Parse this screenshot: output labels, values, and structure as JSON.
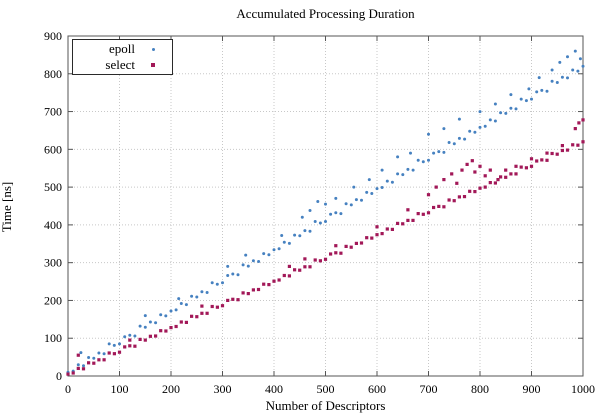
{
  "window": {
    "background": "#ffffff",
    "frame_color": "#555555",
    "grid_color": "#c8c8c8"
  },
  "chart_data": {
    "type": "scatter",
    "title": "Accumulated Processing Duration",
    "xlabel": "Number of Descriptors",
    "ylabel": "Time [ns]",
    "xlim": [
      0,
      1000
    ],
    "ylim": [
      0,
      900
    ],
    "x_ticks": [
      0,
      100,
      200,
      300,
      400,
      500,
      600,
      700,
      800,
      900,
      1000
    ],
    "y_ticks": [
      0,
      100,
      200,
      300,
      400,
      500,
      600,
      700,
      800,
      900
    ],
    "grid": true,
    "legend_position": "top-left",
    "series": [
      {
        "name": "epoll",
        "marker": "circle",
        "color": "#4681c0",
        "points": [
          [
            0,
            10
          ],
          [
            10,
            13
          ],
          [
            20,
            30
          ],
          [
            30,
            27
          ],
          [
            40,
            49
          ],
          [
            50,
            47
          ],
          [
            60,
            61
          ],
          [
            70,
            59
          ],
          [
            80,
            85
          ],
          [
            90,
            81
          ],
          [
            100,
            85
          ],
          [
            110,
            104
          ],
          [
            120,
            108
          ],
          [
            130,
            106
          ],
          [
            140,
            132
          ],
          [
            150,
            129
          ],
          [
            160,
            143
          ],
          [
            170,
            141
          ],
          [
            180,
            162
          ],
          [
            190,
            159
          ],
          [
            200,
            172
          ],
          [
            210,
            175
          ],
          [
            220,
            192
          ],
          [
            230,
            189
          ],
          [
            240,
            211
          ],
          [
            250,
            209
          ],
          [
            260,
            223
          ],
          [
            270,
            221
          ],
          [
            280,
            247
          ],
          [
            290,
            243
          ],
          [
            300,
            247
          ],
          [
            310,
            266
          ],
          [
            320,
            270
          ],
          [
            330,
            268
          ],
          [
            340,
            294
          ],
          [
            350,
            291
          ],
          [
            360,
            305
          ],
          [
            370,
            303
          ],
          [
            380,
            324
          ],
          [
            390,
            321
          ],
          [
            400,
            334
          ],
          [
            410,
            337
          ],
          [
            420,
            354
          ],
          [
            430,
            351
          ],
          [
            440,
            373
          ],
          [
            450,
            371
          ],
          [
            460,
            385
          ],
          [
            470,
            383
          ],
          [
            480,
            409
          ],
          [
            490,
            405
          ],
          [
            500,
            409
          ],
          [
            510,
            428
          ],
          [
            520,
            432
          ],
          [
            530,
            430
          ],
          [
            540,
            456
          ],
          [
            550,
            453
          ],
          [
            560,
            467
          ],
          [
            570,
            465
          ],
          [
            580,
            486
          ],
          [
            590,
            483
          ],
          [
            600,
            496
          ],
          [
            610,
            499
          ],
          [
            620,
            516
          ],
          [
            630,
            513
          ],
          [
            640,
            535
          ],
          [
            650,
            533
          ],
          [
            660,
            547
          ],
          [
            670,
            545
          ],
          [
            680,
            571
          ],
          [
            690,
            567
          ],
          [
            700,
            571
          ],
          [
            710,
            590
          ],
          [
            720,
            594
          ],
          [
            730,
            592
          ],
          [
            740,
            618
          ],
          [
            750,
            615
          ],
          [
            760,
            629
          ],
          [
            770,
            627
          ],
          [
            780,
            648
          ],
          [
            790,
            645
          ],
          [
            800,
            658
          ],
          [
            810,
            661
          ],
          [
            820,
            678
          ],
          [
            830,
            675
          ],
          [
            840,
            697
          ],
          [
            850,
            695
          ],
          [
            860,
            709
          ],
          [
            870,
            707
          ],
          [
            880,
            733
          ],
          [
            890,
            729
          ],
          [
            900,
            733
          ],
          [
            910,
            752
          ],
          [
            920,
            756
          ],
          [
            930,
            754
          ],
          [
            940,
            780
          ],
          [
            950,
            777
          ],
          [
            960,
            791
          ],
          [
            970,
            789
          ],
          [
            980,
            810
          ],
          [
            990,
            807
          ],
          [
            1000,
            820
          ],
          [
            25,
            62
          ],
          [
            150,
            160
          ],
          [
            215,
            205
          ],
          [
            310,
            290
          ],
          [
            345,
            320
          ],
          [
            415,
            372
          ],
          [
            455,
            420
          ],
          [
            470,
            438
          ],
          [
            485,
            462
          ],
          [
            500,
            455
          ],
          [
            520,
            470
          ],
          [
            555,
            500
          ],
          [
            585,
            520
          ],
          [
            610,
            545
          ],
          [
            640,
            580
          ],
          [
            665,
            590
          ],
          [
            700,
            640
          ],
          [
            730,
            655
          ],
          [
            760,
            680
          ],
          [
            800,
            700
          ],
          [
            830,
            720
          ],
          [
            860,
            745
          ],
          [
            895,
            760
          ],
          [
            915,
            790
          ],
          [
            940,
            810
          ],
          [
            955,
            830
          ],
          [
            970,
            845
          ],
          [
            985,
            860
          ],
          [
            995,
            840
          ]
        ]
      },
      {
        "name": "select",
        "marker": "square",
        "color": "#a21858",
        "points": [
          [
            0,
            5
          ],
          [
            10,
            8
          ],
          [
            20,
            20
          ],
          [
            30,
            19
          ],
          [
            40,
            35
          ],
          [
            50,
            34
          ],
          [
            60,
            43
          ],
          [
            70,
            43
          ],
          [
            80,
            61
          ],
          [
            90,
            59
          ],
          [
            100,
            63
          ],
          [
            110,
            77
          ],
          [
            120,
            80
          ],
          [
            130,
            79
          ],
          [
            140,
            97
          ],
          [
            150,
            95
          ],
          [
            160,
            105
          ],
          [
            170,
            106
          ],
          [
            180,
            120
          ],
          [
            190,
            119
          ],
          [
            200,
            128
          ],
          [
            210,
            131
          ],
          [
            220,
            143
          ],
          [
            230,
            142
          ],
          [
            240,
            158
          ],
          [
            250,
            157
          ],
          [
            260,
            166
          ],
          [
            270,
            166
          ],
          [
            280,
            184
          ],
          [
            290,
            182
          ],
          [
            300,
            186
          ],
          [
            310,
            200
          ],
          [
            320,
            203
          ],
          [
            330,
            202
          ],
          [
            340,
            220
          ],
          [
            350,
            218
          ],
          [
            360,
            228
          ],
          [
            370,
            229
          ],
          [
            380,
            243
          ],
          [
            390,
            242
          ],
          [
            400,
            251
          ],
          [
            410,
            254
          ],
          [
            420,
            266
          ],
          [
            430,
            265
          ],
          [
            440,
            281
          ],
          [
            450,
            280
          ],
          [
            460,
            289
          ],
          [
            470,
            289
          ],
          [
            480,
            307
          ],
          [
            490,
            305
          ],
          [
            500,
            309
          ],
          [
            510,
            323
          ],
          [
            520,
            326
          ],
          [
            530,
            325
          ],
          [
            540,
            343
          ],
          [
            550,
            341
          ],
          [
            560,
            351
          ],
          [
            570,
            352
          ],
          [
            580,
            366
          ],
          [
            590,
            365
          ],
          [
            600,
            374
          ],
          [
            610,
            377
          ],
          [
            620,
            389
          ],
          [
            630,
            388
          ],
          [
            640,
            404
          ],
          [
            650,
            403
          ],
          [
            660,
            412
          ],
          [
            670,
            412
          ],
          [
            680,
            430
          ],
          [
            690,
            428
          ],
          [
            700,
            432
          ],
          [
            710,
            446
          ],
          [
            720,
            449
          ],
          [
            730,
            448
          ],
          [
            740,
            466
          ],
          [
            750,
            464
          ],
          [
            760,
            474
          ],
          [
            770,
            475
          ],
          [
            780,
            489
          ],
          [
            790,
            488
          ],
          [
            800,
            497
          ],
          [
            810,
            500
          ],
          [
            820,
            512
          ],
          [
            830,
            511
          ],
          [
            840,
            527
          ],
          [
            850,
            526
          ],
          [
            860,
            535
          ],
          [
            870,
            535
          ],
          [
            880,
            553
          ],
          [
            890,
            551
          ],
          [
            900,
            555
          ],
          [
            910,
            569
          ],
          [
            920,
            572
          ],
          [
            930,
            571
          ],
          [
            940,
            589
          ],
          [
            950,
            587
          ],
          [
            960,
            597
          ],
          [
            970,
            598
          ],
          [
            980,
            612
          ],
          [
            990,
            611
          ],
          [
            1000,
            620
          ],
          [
            20,
            55
          ],
          [
            120,
            95
          ],
          [
            260,
            185
          ],
          [
            430,
            290
          ],
          [
            460,
            310
          ],
          [
            520,
            345
          ],
          [
            600,
            395
          ],
          [
            660,
            440
          ],
          [
            700,
            480
          ],
          [
            715,
            500
          ],
          [
            730,
            520
          ],
          [
            745,
            535
          ],
          [
            755,
            510
          ],
          [
            765,
            545
          ],
          [
            775,
            560
          ],
          [
            785,
            570
          ],
          [
            790,
            540
          ],
          [
            800,
            555
          ],
          [
            810,
            530
          ],
          [
            820,
            545
          ],
          [
            835,
            520
          ],
          [
            850,
            545
          ],
          [
            870,
            555
          ],
          [
            900,
            575
          ],
          [
            930,
            590
          ],
          [
            960,
            610
          ],
          [
            985,
            655
          ],
          [
            992,
            670
          ],
          [
            1000,
            678
          ]
        ]
      }
    ]
  }
}
